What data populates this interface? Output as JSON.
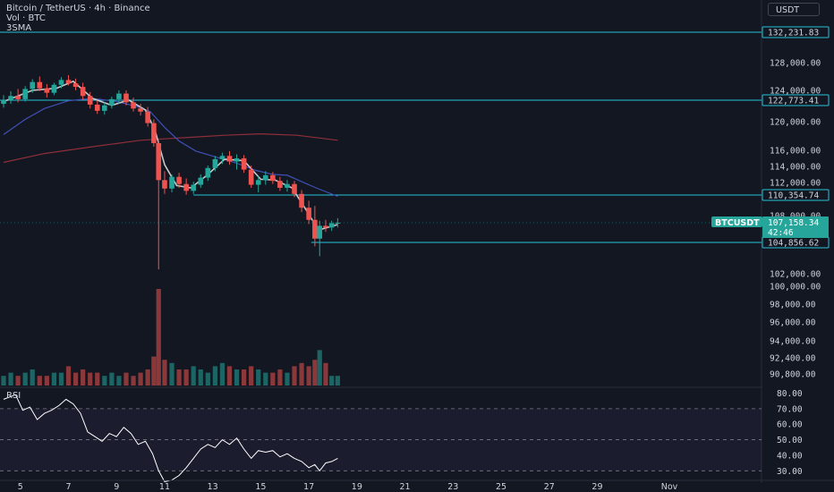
{
  "legend": {
    "title": "Bitcoin / TetherUS · 4h · Binance",
    "volume": "Vol · BTC",
    "sma": "3SMA"
  },
  "currency_button": "USDT",
  "colors": {
    "background": "#131722",
    "up": "#26a69a",
    "down": "#ef5350",
    "level_line": "#26c6da",
    "sma_fast": "#c8c8c8",
    "sma_mid": "#3f51b5",
    "sma_slow": "#8e2f3a",
    "rsi": "#ffffff",
    "axis_text": "#d1d4dc"
  },
  "chart_data": {
    "type": "candlestick",
    "symbol": "BTCUSDT",
    "timeframe": "4h",
    "price_axis": {
      "ylim": [
        90000,
        136000
      ],
      "ticks": [
        "128,000.00",
        "124,000.00",
        "120,000.00",
        "116,000.00",
        "114,000.00",
        "112,000.00",
        "108,000.00",
        "102,000.00",
        "100,000.00",
        "98,000.00",
        "96,000.00",
        "94,000.00",
        "92,400.00",
        "90,800.00"
      ]
    },
    "x_axis": {
      "ticks": [
        "5",
        "7",
        "9",
        "11",
        "13",
        "15",
        "17",
        "19",
        "21",
        "23",
        "25",
        "27",
        "29",
        "Nov"
      ],
      "day_start": 4.3,
      "day_end": 35.2
    },
    "levels": [
      {
        "label": "132,231.83",
        "value": 132231.83
      },
      {
        "label": "122,773.41",
        "value": 122773.41
      },
      {
        "label": "110,354.74",
        "value": 110354.74,
        "start_day": 12.2
      },
      {
        "label": "104,856.62",
        "value": 104856.62,
        "start_day": 17.1
      }
    ],
    "last_price": {
      "symbol_label": "BTCUSDT",
      "price": "107,158.34",
      "countdown": "42:46",
      "value": 107158.34
    },
    "candles": [
      {
        "d": 4.3,
        "o": 122300,
        "h": 123400,
        "l": 121800,
        "c": 122800
      },
      {
        "d": 4.6,
        "o": 122800,
        "h": 123900,
        "l": 122300,
        "c": 123300
      },
      {
        "d": 4.9,
        "o": 123300,
        "h": 124200,
        "l": 122500,
        "c": 122900
      },
      {
        "d": 5.2,
        "o": 122900,
        "h": 124600,
        "l": 122600,
        "c": 124200
      },
      {
        "d": 5.5,
        "o": 124200,
        "h": 125600,
        "l": 123700,
        "c": 125200
      },
      {
        "d": 5.8,
        "o": 125200,
        "h": 126000,
        "l": 123900,
        "c": 124300
      },
      {
        "d": 6.1,
        "o": 124300,
        "h": 124900,
        "l": 123100,
        "c": 123700
      },
      {
        "d": 6.4,
        "o": 123700,
        "h": 125100,
        "l": 123400,
        "c": 124800
      },
      {
        "d": 6.7,
        "o": 124800,
        "h": 125900,
        "l": 124300,
        "c": 125500
      },
      {
        "d": 7.0,
        "o": 125500,
        "h": 126200,
        "l": 124700,
        "c": 125000
      },
      {
        "d": 7.3,
        "o": 125000,
        "h": 125700,
        "l": 124000,
        "c": 124500
      },
      {
        "d": 7.6,
        "o": 124500,
        "h": 125100,
        "l": 122800,
        "c": 123300
      },
      {
        "d": 7.9,
        "o": 123300,
        "h": 123800,
        "l": 121700,
        "c": 122200
      },
      {
        "d": 8.2,
        "o": 122200,
        "h": 122700,
        "l": 121000,
        "c": 121400
      },
      {
        "d": 8.5,
        "o": 121400,
        "h": 122500,
        "l": 120900,
        "c": 122100
      },
      {
        "d": 8.8,
        "o": 122100,
        "h": 123200,
        "l": 121700,
        "c": 122900
      },
      {
        "d": 9.1,
        "o": 122900,
        "h": 124000,
        "l": 122300,
        "c": 123600
      },
      {
        "d": 9.4,
        "o": 123600,
        "h": 124000,
        "l": 122100,
        "c": 122500
      },
      {
        "d": 9.7,
        "o": 122500,
        "h": 123100,
        "l": 121300,
        "c": 121700
      },
      {
        "d": 10.0,
        "o": 121700,
        "h": 122300,
        "l": 120800,
        "c": 121300
      },
      {
        "d": 10.3,
        "o": 121300,
        "h": 121900,
        "l": 119300,
        "c": 119800
      },
      {
        "d": 10.55,
        "o": 119800,
        "h": 120300,
        "l": 116500,
        "c": 117000
      },
      {
        "d": 10.75,
        "o": 117000,
        "h": 117400,
        "l": 102400,
        "c": 112300
      },
      {
        "d": 11.0,
        "o": 112300,
        "h": 113400,
        "l": 110500,
        "c": 111200
      },
      {
        "d": 11.3,
        "o": 111200,
        "h": 113000,
        "l": 110700,
        "c": 112700
      },
      {
        "d": 11.6,
        "o": 112700,
        "h": 113200,
        "l": 111300,
        "c": 111800
      },
      {
        "d": 11.9,
        "o": 111800,
        "h": 112500,
        "l": 110400,
        "c": 110900
      },
      {
        "d": 12.2,
        "o": 110900,
        "h": 112100,
        "l": 110500,
        "c": 111700
      },
      {
        "d": 12.5,
        "o": 111700,
        "h": 113000,
        "l": 111300,
        "c": 112600
      },
      {
        "d": 12.8,
        "o": 112600,
        "h": 114100,
        "l": 112200,
        "c": 113800
      },
      {
        "d": 13.1,
        "o": 113800,
        "h": 115300,
        "l": 113400,
        "c": 114900
      },
      {
        "d": 13.4,
        "o": 114900,
        "h": 115700,
        "l": 114300,
        "c": 115300
      },
      {
        "d": 13.7,
        "o": 115300,
        "h": 115900,
        "l": 114200,
        "c": 114600
      },
      {
        "d": 14.0,
        "o": 114600,
        "h": 115500,
        "l": 113600,
        "c": 115000
      },
      {
        "d": 14.3,
        "o": 115000,
        "h": 115400,
        "l": 113200,
        "c": 113600
      },
      {
        "d": 14.6,
        "o": 113600,
        "h": 114100,
        "l": 111300,
        "c": 111700
      },
      {
        "d": 14.9,
        "o": 111700,
        "h": 112800,
        "l": 110700,
        "c": 112300
      },
      {
        "d": 15.2,
        "o": 112300,
        "h": 113400,
        "l": 111700,
        "c": 112900
      },
      {
        "d": 15.5,
        "o": 112900,
        "h": 113300,
        "l": 111800,
        "c": 112200
      },
      {
        "d": 15.8,
        "o": 112200,
        "h": 112700,
        "l": 110900,
        "c": 111300
      },
      {
        "d": 16.1,
        "o": 111300,
        "h": 112300,
        "l": 110800,
        "c": 111800
      },
      {
        "d": 16.4,
        "o": 111800,
        "h": 112200,
        "l": 110100,
        "c": 110500
      },
      {
        "d": 16.7,
        "o": 110500,
        "h": 111000,
        "l": 108400,
        "c": 108900
      },
      {
        "d": 17.0,
        "o": 108900,
        "h": 109700,
        "l": 107000,
        "c": 107500
      },
      {
        "d": 17.25,
        "o": 107500,
        "h": 109100,
        "l": 104500,
        "c": 105300
      },
      {
        "d": 17.45,
        "o": 105300,
        "h": 107400,
        "l": 103600,
        "c": 106800
      },
      {
        "d": 17.7,
        "o": 106800,
        "h": 107500,
        "l": 106100,
        "c": 106600
      },
      {
        "d": 17.95,
        "o": 106600,
        "h": 107400,
        "l": 106200,
        "c": 107100
      },
      {
        "d": 18.2,
        "o": 107100,
        "h": 107700,
        "l": 106600,
        "c": 107158
      }
    ],
    "sma_fast": [
      [
        4.3,
        122600
      ],
      [
        5.5,
        124000
      ],
      [
        6.5,
        124300
      ],
      [
        7.2,
        125300
      ],
      [
        8.0,
        123000
      ],
      [
        8.8,
        122100
      ],
      [
        9.5,
        122800
      ],
      [
        10.2,
        121500
      ],
      [
        10.6,
        118800
      ],
      [
        11.0,
        114200
      ],
      [
        11.5,
        111600
      ],
      [
        12.1,
        111300
      ],
      [
        12.8,
        113000
      ],
      [
        13.5,
        114900
      ],
      [
        14.3,
        114700
      ],
      [
        15.0,
        112400
      ],
      [
        15.6,
        112300
      ],
      [
        16.3,
        111300
      ],
      [
        16.9,
        108600
      ],
      [
        17.4,
        106300
      ],
      [
        17.9,
        106700
      ],
      [
        18.2,
        106950
      ]
    ],
    "sma_mid": [
      [
        4.3,
        118200
      ],
      [
        5.2,
        120300
      ],
      [
        6.0,
        121700
      ],
      [
        7.0,
        122700
      ],
      [
        8.0,
        123000
      ],
      [
        9.0,
        122600
      ],
      [
        9.8,
        122000
      ],
      [
        10.4,
        121300
      ],
      [
        11.0,
        119200
      ],
      [
        11.6,
        117300
      ],
      [
        12.3,
        115900
      ],
      [
        13.2,
        115100
      ],
      [
        14.0,
        114400
      ],
      [
        14.8,
        113500
      ],
      [
        15.5,
        113000
      ],
      [
        16.1,
        112900
      ],
      [
        16.7,
        112100
      ],
      [
        17.3,
        111300
      ],
      [
        18.2,
        110200
      ]
    ],
    "sma_slow": [
      [
        4.3,
        114500
      ],
      [
        6.0,
        115600
      ],
      [
        8.0,
        116500
      ],
      [
        10.0,
        117400
      ],
      [
        11.0,
        117600
      ],
      [
        12.0,
        117800
      ],
      [
        13.5,
        118100
      ],
      [
        15.0,
        118300
      ],
      [
        16.5,
        118100
      ],
      [
        18.2,
        117400
      ]
    ],
    "volume": [
      3,
      4,
      3,
      4,
      5,
      3,
      3,
      4,
      4,
      6,
      4,
      5,
      4,
      4,
      3,
      4,
      3,
      4,
      3,
      4,
      5,
      9,
      30,
      8,
      7,
      5,
      5,
      6,
      5,
      4,
      6,
      7,
      6,
      5,
      5,
      6,
      5,
      4,
      4,
      5,
      4,
      6,
      7,
      6,
      8,
      11,
      7,
      3,
      3
    ],
    "volume_max": 30,
    "rsi": {
      "label": "RSI",
      "ticks": [
        "80.00",
        "70.00",
        "60.00",
        "50.00",
        "40.00",
        "30.00"
      ],
      "ylim": [
        25,
        82
      ],
      "bands": [
        70,
        50,
        30
      ],
      "values": [
        [
          4.3,
          76
        ],
        [
          4.8,
          79
        ],
        [
          5.1,
          69
        ],
        [
          5.4,
          71
        ],
        [
          5.7,
          63
        ],
        [
          6.0,
          67
        ],
        [
          6.3,
          69
        ],
        [
          6.6,
          72
        ],
        [
          6.9,
          76
        ],
        [
          7.2,
          73
        ],
        [
          7.5,
          67
        ],
        [
          7.8,
          55
        ],
        [
          8.1,
          52
        ],
        [
          8.4,
          49
        ],
        [
          8.7,
          54
        ],
        [
          9.0,
          52
        ],
        [
          9.3,
          58
        ],
        [
          9.6,
          54
        ],
        [
          9.9,
          47
        ],
        [
          10.2,
          49
        ],
        [
          10.5,
          41
        ],
        [
          10.75,
          30
        ],
        [
          11.0,
          23
        ],
        [
          11.3,
          24
        ],
        [
          11.6,
          27
        ],
        [
          11.9,
          32
        ],
        [
          12.2,
          38
        ],
        [
          12.5,
          44
        ],
        [
          12.8,
          47
        ],
        [
          13.1,
          45
        ],
        [
          13.4,
          50
        ],
        [
          13.7,
          47
        ],
        [
          14.0,
          51
        ],
        [
          14.3,
          44
        ],
        [
          14.6,
          38
        ],
        [
          14.9,
          43
        ],
        [
          15.2,
          42
        ],
        [
          15.5,
          43
        ],
        [
          15.8,
          39
        ],
        [
          16.1,
          41
        ],
        [
          16.4,
          38
        ],
        [
          16.7,
          36
        ],
        [
          17.0,
          32
        ],
        [
          17.25,
          34
        ],
        [
          17.45,
          30
        ],
        [
          17.7,
          35
        ],
        [
          17.95,
          36
        ],
        [
          18.2,
          38
        ]
      ]
    }
  }
}
